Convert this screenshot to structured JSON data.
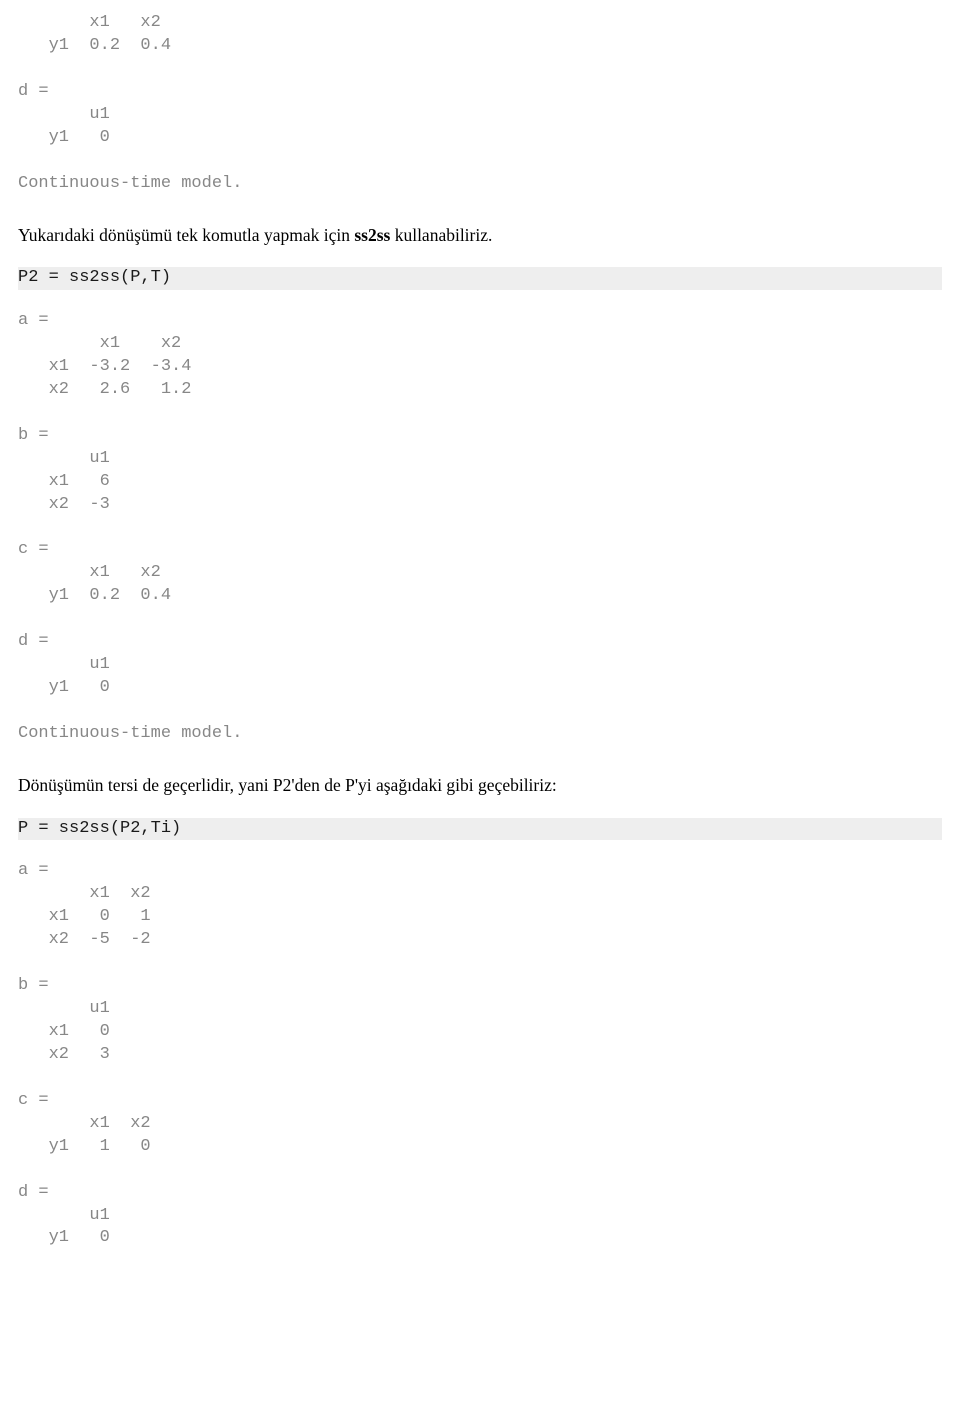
{
  "code1": "       x1   x2\n   y1  0.2  0.4\n\nd =\n       u1\n   y1   0\n\nContinuous-time model.",
  "prose1_a": "Yukarıdaki dönüşümü tek komutla yapmak için ",
  "prose1_b": "ss2ss",
  "prose1_c": " kullanabiliriz.",
  "cmd1": "P2 = ss2ss(P,T)",
  "code2": "a =\n        x1    x2\n   x1  -3.2  -3.4\n   x2   2.6   1.2\n\nb =\n       u1\n   x1   6\n   x2  -3\n\nc =\n       x1   x2\n   y1  0.2  0.4\n\nd =\n       u1\n   y1   0\n\nContinuous-time model.",
  "prose2": "Dönüşümün tersi de geçerlidir, yani P2'den de P'yi aşağıdaki gibi geçebiliriz:",
  "cmd2": "P = ss2ss(P2,Ti)",
  "code3": "a =\n       x1  x2\n   x1   0   1\n   x2  -5  -2\n\nb =\n       u1\n   x1   0\n   x2   3\n\nc =\n       x1  x2\n   y1   1   0\n\nd =\n       u1\n   y1   0"
}
